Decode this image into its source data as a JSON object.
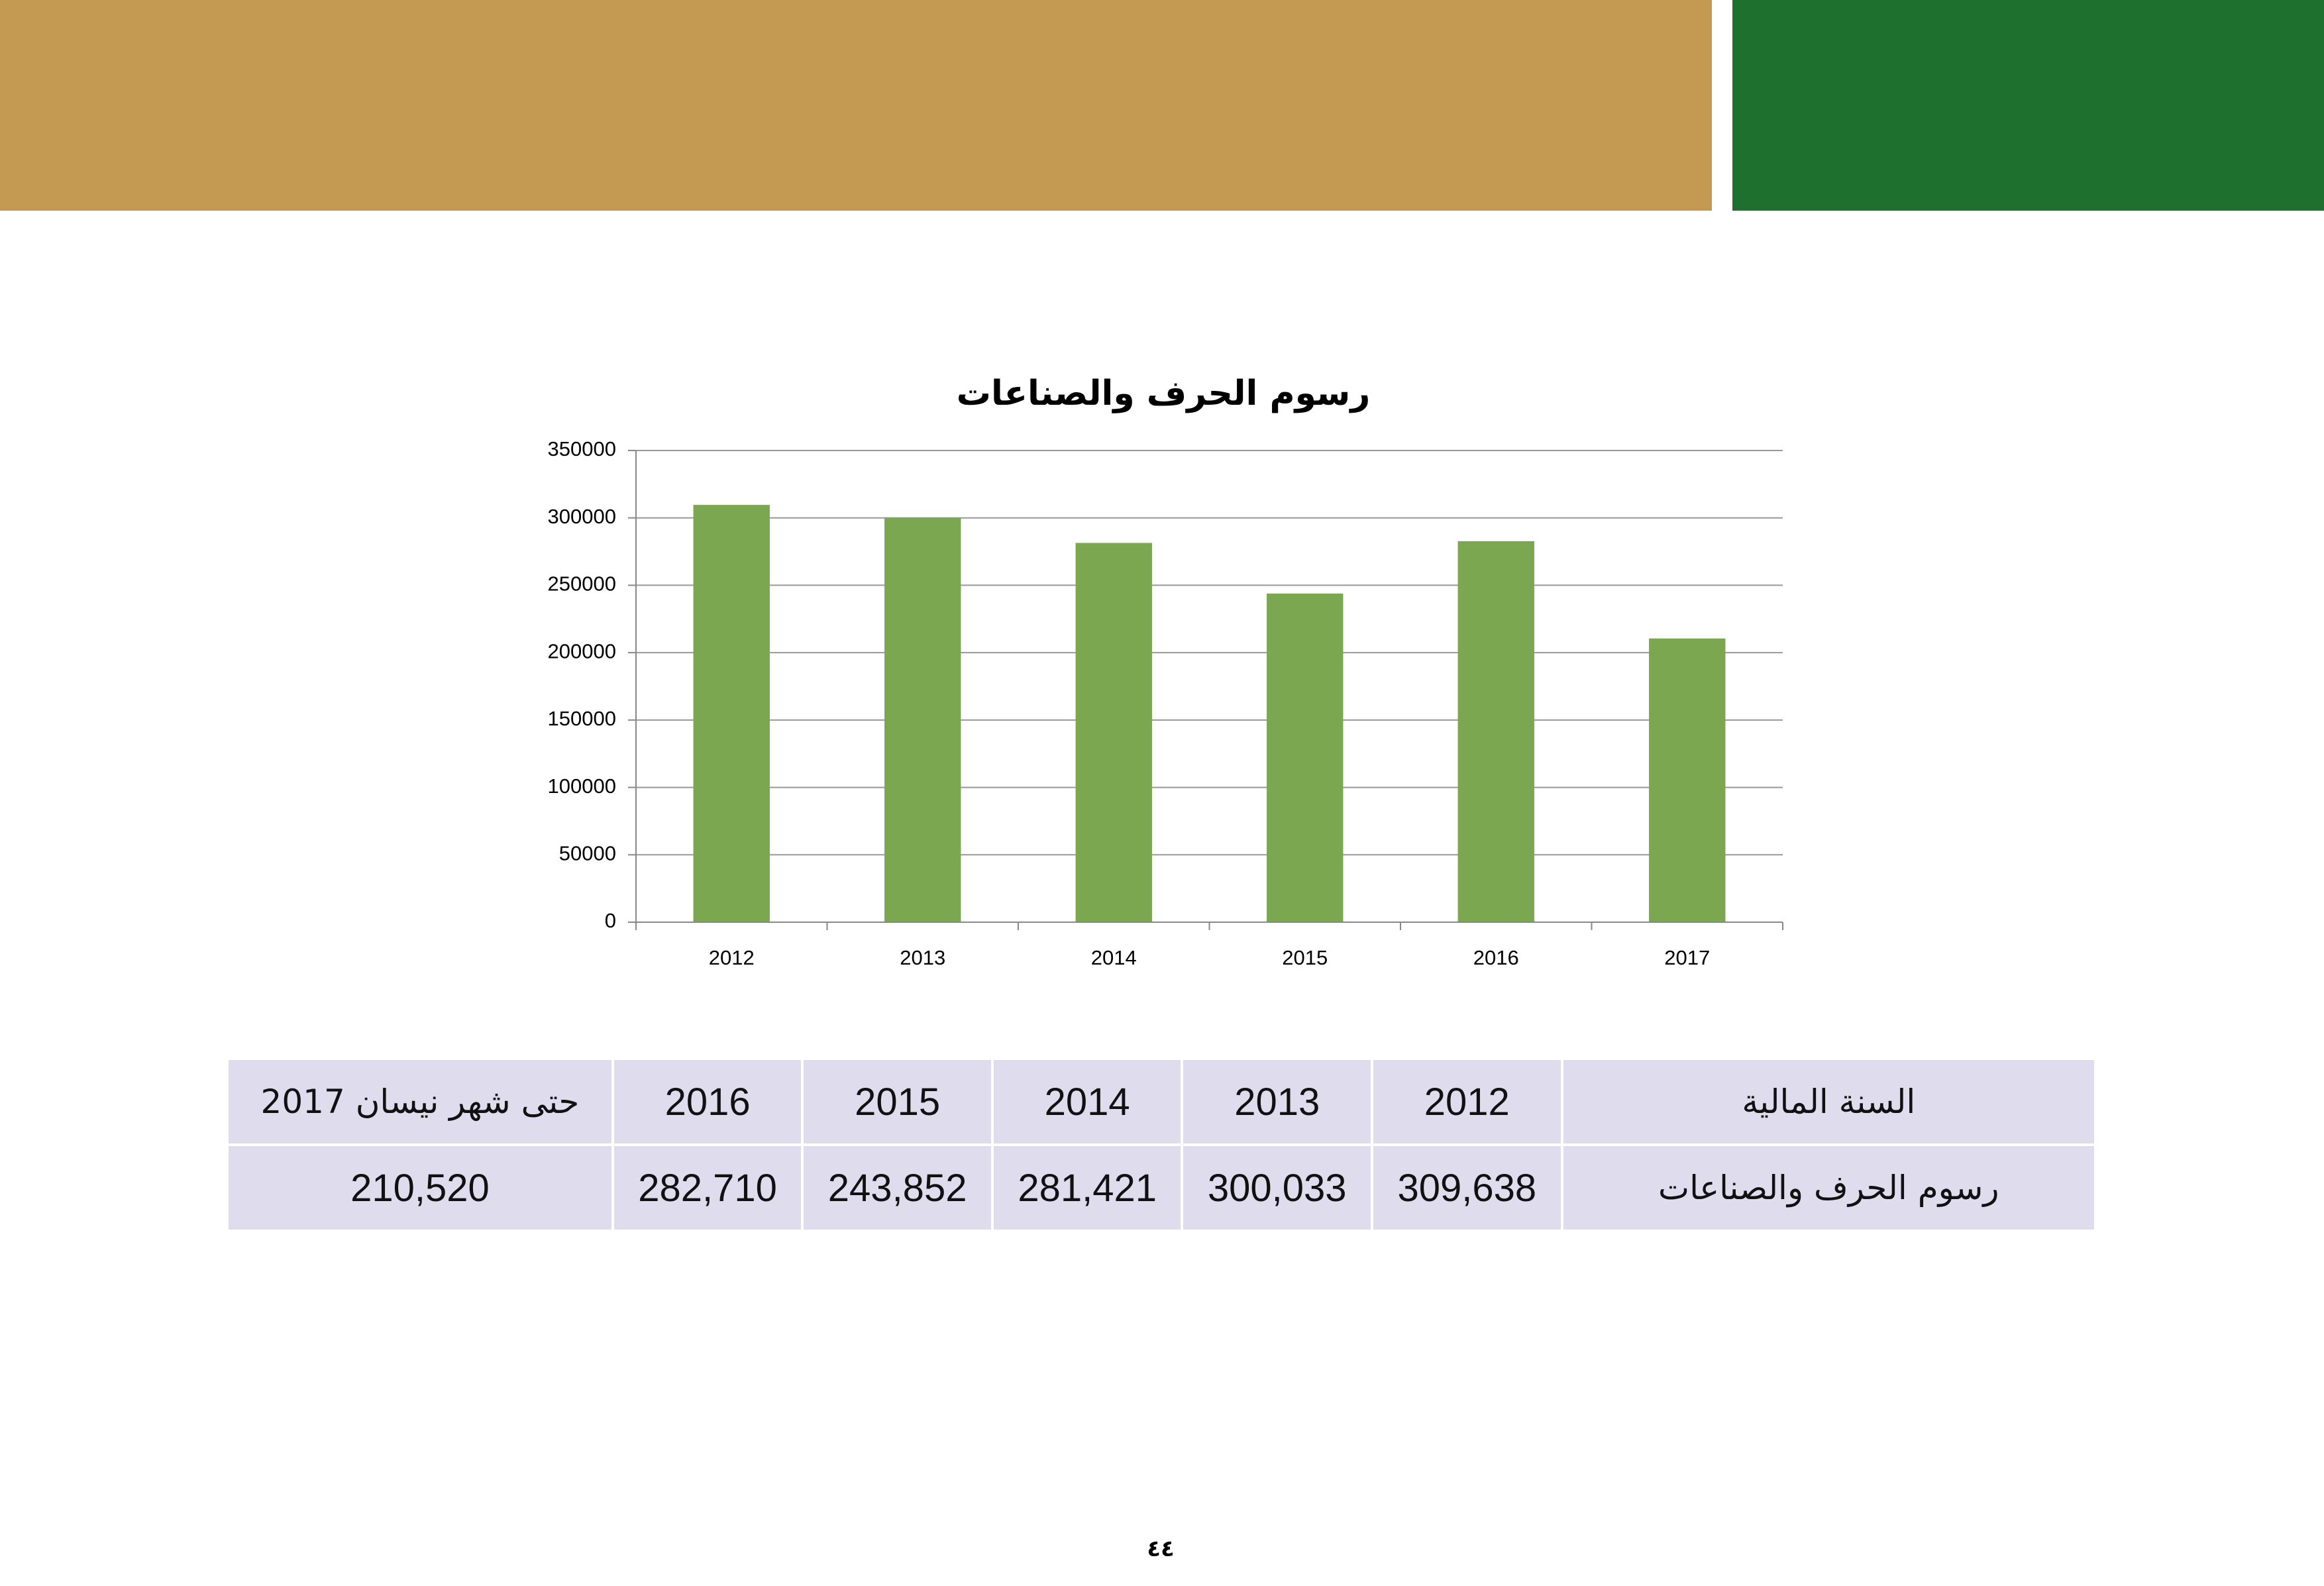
{
  "chart_data": {
    "type": "bar",
    "title": "رسوم الحرف والصناعات",
    "categories": [
      "2012",
      "2013",
      "2014",
      "2015",
      "2016",
      "2017"
    ],
    "values": [
      309638,
      300033,
      281421,
      243852,
      282710,
      210520
    ],
    "color": "#7ba751",
    "ylim": [
      0,
      350000
    ],
    "yticks": [
      0,
      50000,
      100000,
      150000,
      200000,
      250000,
      300000,
      350000
    ],
    "grid": true
  },
  "table": {
    "rows": [
      [
        "السنة المالية",
        "2012",
        "2013",
        "2014",
        "2015",
        "2016",
        "حتى شهر نيسان 2017"
      ],
      [
        "رسوم الحرف والصناعات",
        "309,638",
        "300,033",
        "281,421",
        "243,852",
        "282,710",
        "210,520"
      ]
    ]
  },
  "page_number": "٤٤"
}
